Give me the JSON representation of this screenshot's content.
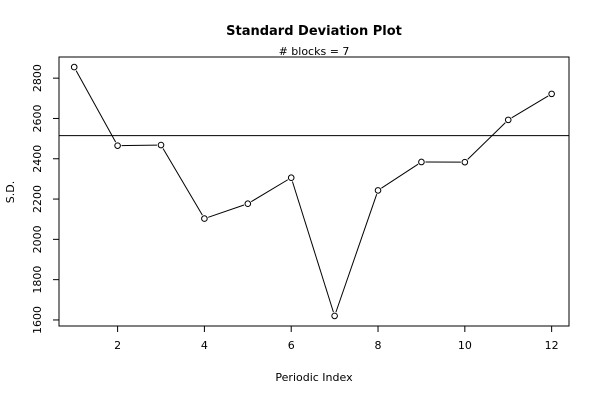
{
  "chart_data": {
    "type": "line",
    "title": "Standard Deviation Plot",
    "subtitle": "# blocks =  7",
    "xlabel": "Periodic Index",
    "ylabel": "S.D.",
    "x": [
      1,
      2,
      3,
      4,
      5,
      6,
      7,
      8,
      9,
      10,
      11,
      12
    ],
    "values": [
      2855,
      2465,
      2468,
      2103,
      2177,
      2306,
      1620,
      2243,
      2384,
      2383,
      2593,
      2722
    ],
    "reference_line": 2515,
    "xlim": [
      0.65,
      12.4
    ],
    "ylim": [
      1570,
      2905
    ],
    "x_ticks": [
      2,
      4,
      6,
      8,
      10,
      12
    ],
    "y_ticks": [
      1600,
      1800,
      2000,
      2200,
      2400,
      2600,
      2800
    ],
    "grid": false,
    "legend": "none",
    "colors": {
      "line": "#000000",
      "marker": "#000000",
      "background": "#ffffff"
    }
  }
}
